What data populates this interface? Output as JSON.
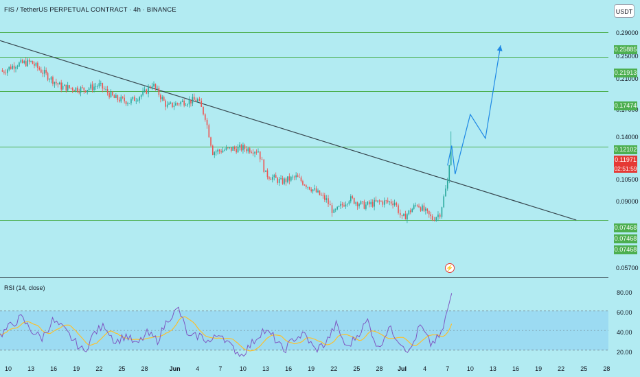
{
  "header": {
    "title": "FIS / TetherUS PERPETUAL CONTRACT · 4h · BINANCE",
    "currency": "USDT"
  },
  "rsi": {
    "label": "RSI (14, close)",
    "ticks": [
      "80.00",
      "60.00",
      "40.00",
      "20.00"
    ],
    "upper_band": 70,
    "lower_band": 30,
    "middle": 50,
    "last_value": 88
  },
  "price_axis": {
    "ticks": [
      "0.29000",
      "0.25000",
      "0.21000",
      "0.17000",
      "0.14000",
      "0.10500",
      "0.09000",
      "0.05700"
    ]
  },
  "levels": [
    {
      "label": "0.25885",
      "value": 0.25885
    },
    {
      "label": "0.21913",
      "value": 0.21913
    },
    {
      "label": "0.17474",
      "value": 0.17474
    },
    {
      "label": "0.12102",
      "value": 0.12102
    },
    {
      "label": "0.07468",
      "value": 0.07468
    }
  ],
  "extra_badges": [
    "0.07468",
    "0.07468"
  ],
  "current_price": {
    "label": "0.11971",
    "countdown": "02:51:59"
  },
  "x_axis": {
    "labels": [
      "10",
      "13",
      "16",
      "19",
      "22",
      "25",
      "28",
      "Jun",
      "4",
      "7",
      "10",
      "13",
      "16",
      "19",
      "22",
      "25",
      "28",
      "Jul",
      "4",
      "7",
      "10",
      "13",
      "16",
      "19",
      "22",
      "25",
      "28"
    ],
    "bold": [
      "Jun",
      "Jul"
    ]
  },
  "event_icon": "lightning-icon",
  "colors": {
    "background": "#b2ebf2",
    "level_line": "#4caf50",
    "up_candle": "#26a69a",
    "down_candle": "#ef5350",
    "trendline": "#37474f",
    "projection": "#1e88e5",
    "rsi_line": "#7e57c2",
    "rsi_ma": "#fbc02d"
  },
  "chart_data": {
    "type": "candlestick",
    "title": "FIS / TetherUS PERPETUAL CONTRACT · 4h · BINANCE",
    "interval": "4h",
    "price_range": [
      0.054,
      0.32
    ],
    "horizontal_levels": [
      0.25885,
      0.21913,
      0.17474,
      0.12102,
      0.07468
    ],
    "current_price": 0.11971,
    "close_path": [
      {
        "date": "May 9",
        "close": 0.198
      },
      {
        "date": "May 11",
        "close": 0.209
      },
      {
        "date": "May 13",
        "close": 0.212
      },
      {
        "date": "May 15",
        "close": 0.195
      },
      {
        "date": "May 17",
        "close": 0.18
      },
      {
        "date": "May 20",
        "close": 0.177
      },
      {
        "date": "May 22",
        "close": 0.182
      },
      {
        "date": "May 24",
        "close": 0.167
      },
      {
        "date": "May 26",
        "close": 0.163
      },
      {
        "date": "May 28",
        "close": 0.173
      },
      {
        "date": "May 29",
        "close": 0.184
      },
      {
        "date": "May 31",
        "close": 0.158
      },
      {
        "date": "Jun 2",
        "close": 0.163
      },
      {
        "date": "Jun 4",
        "close": 0.165
      },
      {
        "date": "Jun 5",
        "close": 0.148
      },
      {
        "date": "Jun 6",
        "close": 0.117
      },
      {
        "date": "Jun 8",
        "close": 0.119
      },
      {
        "date": "Jun 10",
        "close": 0.12
      },
      {
        "date": "Jun 12",
        "close": 0.118
      },
      {
        "date": "Jun 13",
        "close": 0.101
      },
      {
        "date": "Jun 15",
        "close": 0.096
      },
      {
        "date": "Jun 17",
        "close": 0.099
      },
      {
        "date": "Jun 19",
        "close": 0.092
      },
      {
        "date": "Jun 21",
        "close": 0.085
      },
      {
        "date": "Jun 22",
        "close": 0.078
      },
      {
        "date": "Jun 24",
        "close": 0.086
      },
      {
        "date": "Jun 26",
        "close": 0.082
      },
      {
        "date": "Jun 28",
        "close": 0.084
      },
      {
        "date": "Jun 30",
        "close": 0.084
      },
      {
        "date": "Jul 1",
        "close": 0.075
      },
      {
        "date": "Jul 3",
        "close": 0.083
      },
      {
        "date": "Jul 5",
        "close": 0.075
      },
      {
        "date": "Jul 6",
        "close": 0.078
      },
      {
        "date": "Jul 7",
        "close": 0.096
      },
      {
        "date": "Jul 7",
        "close": 0.11971
      }
    ],
    "trendline": [
      {
        "date": "May 8",
        "price": 0.248
      },
      {
        "date": "Jul 24",
        "price": 0.0745
      }
    ],
    "projection_path": [
      {
        "date": "Jul 7",
        "price": 0.107
      },
      {
        "date": "Jul 7",
        "price": 0.122
      },
      {
        "date": "Jul 8",
        "price": 0.101
      },
      {
        "date": "Jul 10",
        "price": 0.15
      },
      {
        "date": "Jul 12",
        "price": 0.128
      },
      {
        "date": "Jul 14",
        "price": 0.237
      }
    ],
    "rsi": {
      "period": 14,
      "ylim": [
        10,
        100
      ],
      "bands": [
        30,
        50,
        70
      ],
      "values": [
        45,
        55,
        63,
        50,
        42,
        60,
        52,
        40,
        28,
        48,
        55,
        38,
        45,
        35,
        47,
        40,
        62,
        72,
        42,
        45,
        38,
        48,
        33,
        25,
        37,
        50,
        44,
        29,
        42,
        46,
        30,
        37,
        56,
        32,
        45,
        60,
        31,
        53,
        40,
        28,
        55,
        36,
        45,
        88
      ]
    }
  }
}
